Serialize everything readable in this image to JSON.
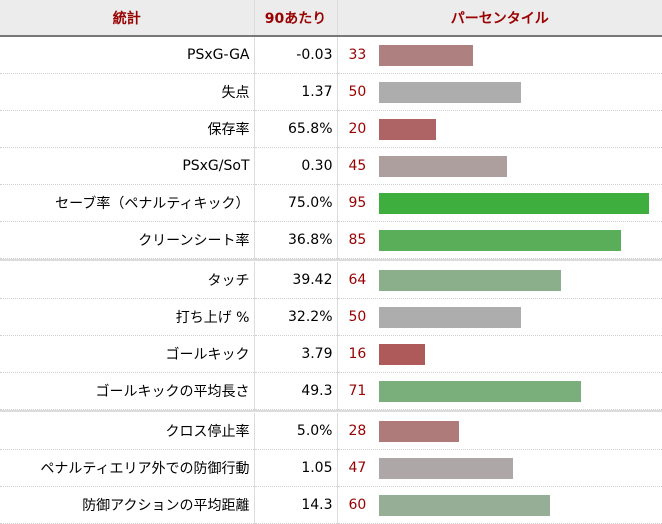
{
  "header": {
    "stat": "統計",
    "per90": "90あたり",
    "percentile": "パーセンタイル"
  },
  "groups": [
    {
      "rows": [
        {
          "stat": "PSxG-GA",
          "per90": "-0.03",
          "percentile": "33",
          "color": "#ae8080"
        },
        {
          "stat": "失点",
          "per90": "1.37",
          "percentile": "50",
          "color": "#adadad"
        },
        {
          "stat": "保存率",
          "per90": "65.8%",
          "percentile": "20",
          "color": "#ae6464"
        },
        {
          "stat": "PSxG/SoT",
          "per90": "0.30",
          "percentile": "45",
          "color": "#ae9f9f"
        },
        {
          "stat": "セーブ率（ペナルティキック）",
          "per90": "75.0%",
          "percentile": "95",
          "color": "#3eae3e"
        },
        {
          "stat": "クリーンシート率",
          "per90": "36.8%",
          "percentile": "85",
          "color": "#5aae5a"
        }
      ]
    },
    {
      "rows": [
        {
          "stat": "タッチ",
          "per90": "39.42",
          "percentile": "64",
          "color": "#8bae8b"
        },
        {
          "stat": "打ち上げ %",
          "per90": "32.2%",
          "percentile": "50",
          "color": "#adadad"
        },
        {
          "stat": "ゴールキック",
          "per90": "3.79",
          "percentile": "16",
          "color": "#ae5a5a"
        },
        {
          "stat": "ゴールキックの平均長さ",
          "per90": "49.3",
          "percentile": "71",
          "color": "#7aae7a"
        }
      ]
    },
    {
      "rows": [
        {
          "stat": "クロス停止率",
          "per90": "5.0%",
          "percentile": "28",
          "color": "#ae7a7a"
        },
        {
          "stat": "ペナルティエリア外での防御行動",
          "per90": "1.05",
          "percentile": "47",
          "color": "#aea7a7"
        },
        {
          "stat": "防御アクションの平均距離",
          "per90": "14.3",
          "percentile": "60",
          "color": "#96ae96"
        }
      ]
    }
  ]
}
